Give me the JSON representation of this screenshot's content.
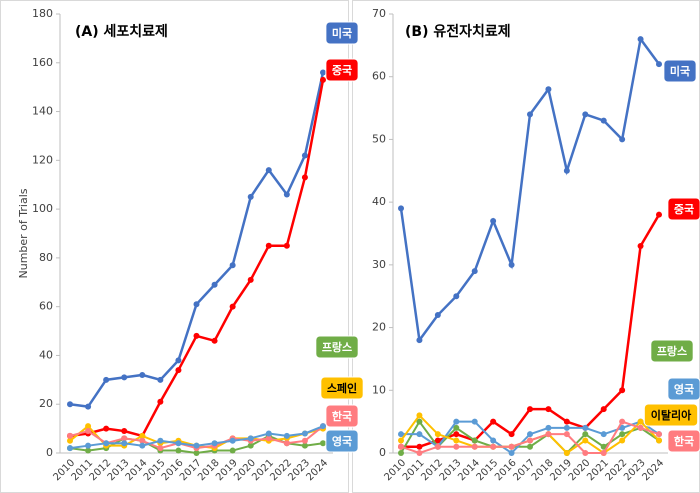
{
  "chart_data": [
    {
      "type": "line",
      "title": "(A) 세포치료제",
      "y_label": "Number of Trials",
      "categories": [
        "2010",
        "2011",
        "2012",
        "2013",
        "2014",
        "2015",
        "2016",
        "2017",
        "2018",
        "2019",
        "2020",
        "2021",
        "2022",
        "2023",
        "2024"
      ],
      "ylim": [
        0,
        180
      ],
      "yticks": [
        0,
        20,
        40,
        60,
        80,
        100,
        120,
        140,
        160,
        180
      ],
      "series": [
        {
          "name": "미국",
          "color": "#4472c4",
          "values": [
            20,
            19,
            30,
            31,
            32,
            30,
            38,
            61,
            69,
            77,
            105,
            116,
            106,
            122,
            156
          ]
        },
        {
          "name": "중국",
          "color": "#ff0000",
          "values": [
            7,
            8,
            10,
            9,
            7,
            21,
            34,
            48,
            46,
            60,
            71,
            85,
            85,
            113,
            153
          ]
        },
        {
          "name": "프랑스",
          "color": "#70ad47",
          "values": [
            2,
            1,
            2,
            6,
            5,
            1,
            1,
            0,
            1,
            1,
            3,
            7,
            4,
            3,
            4
          ]
        },
        {
          "name": "스페인",
          "color": "#ffc000",
          "values": [
            5,
            11,
            3,
            3,
            7,
            4,
            5,
            3,
            2,
            6,
            6,
            5,
            6,
            8,
            10
          ]
        },
        {
          "name": "한국",
          "color": "#ff7c80",
          "values": [
            7,
            9,
            4,
            6,
            5,
            2,
            4,
            2,
            3,
            6,
            5,
            6,
            4,
            5,
            11
          ]
        },
        {
          "name": "영국",
          "color": "#5b9bd5",
          "values": [
            2,
            3,
            4,
            4,
            3,
            5,
            4,
            3,
            4,
            5,
            6,
            8,
            7,
            8,
            11
          ]
        }
      ]
    },
    {
      "type": "line",
      "title": "(B) 유전자치료제",
      "categories": [
        "2010",
        "2011",
        "2012",
        "2013",
        "2014",
        "2015",
        "2016",
        "2017",
        "2018",
        "2019",
        "2020",
        "2021",
        "2022",
        "2023",
        "2024"
      ],
      "ylim": [
        0,
        70
      ],
      "yticks": [
        0,
        10,
        20,
        30,
        40,
        50,
        60,
        70
      ],
      "series": [
        {
          "name": "미국",
          "color": "#4472c4",
          "values": [
            39,
            18,
            22,
            25,
            29,
            37,
            30,
            54,
            58,
            45,
            54,
            53,
            50,
            66,
            62
          ]
        },
        {
          "name": "중국",
          "color": "#ff0000",
          "values": [
            1,
            1,
            2,
            3,
            2,
            5,
            3,
            7,
            7,
            5,
            4,
            7,
            10,
            33,
            38
          ]
        },
        {
          "name": "프랑스",
          "color": "#70ad47",
          "values": [
            0,
            5,
            1,
            4,
            2,
            1,
            1,
            1,
            3,
            0,
            3,
            1,
            3,
            4,
            2
          ]
        },
        {
          "name": "영국",
          "color": "#5b9bd5",
          "values": [
            3,
            3,
            1,
            5,
            5,
            2,
            0,
            3,
            4,
            4,
            4,
            3,
            4,
            5,
            3
          ]
        },
        {
          "name": "이탈리아",
          "color": "#ffc000",
          "values": [
            2,
            6,
            3,
            2,
            1,
            1,
            1,
            2,
            3,
            0,
            2,
            0,
            2,
            5,
            2
          ]
        },
        {
          "name": "한국",
          "color": "#ff7c80",
          "values": [
            1,
            0,
            1,
            1,
            1,
            1,
            1,
            2,
            3,
            3,
            0,
            0,
            5,
            4,
            3
          ]
        }
      ]
    }
  ]
}
